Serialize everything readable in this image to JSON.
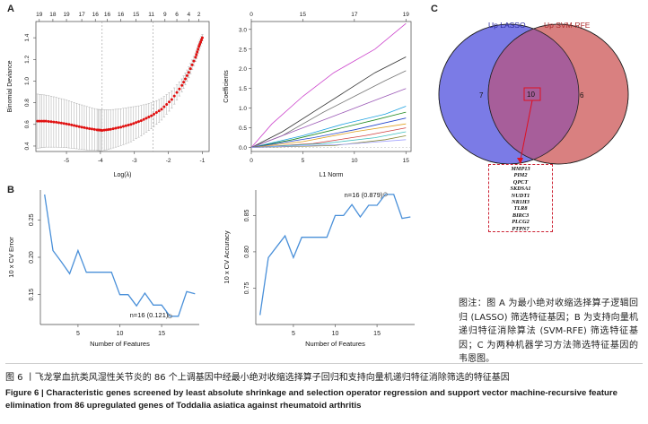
{
  "panels": {
    "A": "A",
    "B": "B",
    "C": "C"
  },
  "chart_data": [
    {
      "type": "line",
      "panel": "A-left",
      "xlabel": "Log(λ)",
      "ylabel": "Binomial Deviance",
      "xlim": [
        -5.9,
        -0.8
      ],
      "ylim": [
        0.35,
        1.55
      ],
      "xticks": [
        -5,
        -4,
        -3,
        -2,
        -1
      ],
      "yticks": [
        0.4,
        0.6,
        0.8,
        1.0,
        1.2,
        1.4
      ],
      "top_ticks": {
        "x": [
          -5.8,
          -5.4,
          -5.0,
          -4.55,
          -4.15,
          -3.8,
          -3.4,
          -2.95,
          -2.5,
          -2.1,
          -1.75,
          -1.4,
          -1.1
        ],
        "labels": [
          "19",
          "18",
          "19",
          "17",
          "16",
          "16",
          "16",
          "15",
          "11",
          "9",
          "6",
          "4",
          "2"
        ]
      },
      "vlines": [
        -3.95,
        -2.45
      ],
      "curve": {
        "x": [
          -5.85,
          -5.6,
          -5.3,
          -5.0,
          -4.7,
          -4.4,
          -4.1,
          -3.95,
          -3.7,
          -3.4,
          -3.1,
          -2.8,
          -2.5,
          -2.2,
          -1.9,
          -1.6,
          -1.4,
          -1.2,
          -1.1,
          -1.0
        ],
        "y": [
          0.63,
          0.63,
          0.62,
          0.605,
          0.585,
          0.565,
          0.55,
          0.545,
          0.555,
          0.575,
          0.6,
          0.635,
          0.68,
          0.74,
          0.83,
          0.96,
          1.08,
          1.22,
          1.32,
          1.4
        ],
        "err": [
          0.25,
          0.24,
          0.23,
          0.22,
          0.21,
          0.2,
          0.19,
          0.19,
          0.18,
          0.17,
          0.16,
          0.14,
          0.12,
          0.1,
          0.08,
          0.06,
          0.05,
          0.04,
          0.04,
          0.03
        ]
      },
      "colors": {
        "point": "#e01010",
        "errbar": "#aaaaaa",
        "vline": "#999999"
      }
    },
    {
      "type": "line",
      "panel": "A-right",
      "xlabel": "L1 Norm",
      "ylabel": "Coefficients",
      "xlim": [
        0,
        15.5
      ],
      "ylim": [
        -0.1,
        3.2
      ],
      "xticks": [
        0,
        5,
        10,
        15
      ],
      "yticks": [
        0.0,
        0.5,
        1.0,
        1.5,
        2.0,
        2.5,
        3.0
      ],
      "top_ticks": {
        "x": [
          0,
          5,
          10,
          15
        ],
        "labels": [
          "0",
          "15",
          "17",
          "19"
        ]
      },
      "series": [
        {
          "color": "#cc44cc",
          "x": [
            0,
            2,
            5,
            8,
            12,
            15
          ],
          "y": [
            0,
            0.6,
            1.3,
            1.9,
            2.5,
            3.15
          ]
        },
        {
          "color": "#333333",
          "x": [
            0,
            3,
            6,
            9,
            12,
            15
          ],
          "y": [
            0,
            0.4,
            0.9,
            1.4,
            1.9,
            2.3
          ]
        },
        {
          "color": "#777777",
          "x": [
            0,
            3,
            7,
            10,
            13,
            15
          ],
          "y": [
            0,
            0.3,
            0.9,
            1.3,
            1.7,
            1.95
          ]
        },
        {
          "color": "#9b59b6",
          "x": [
            0,
            4,
            8,
            12,
            15
          ],
          "y": [
            0,
            0.4,
            0.8,
            1.2,
            1.5
          ]
        },
        {
          "color": "#1aa0e0",
          "x": [
            0,
            5,
            9,
            13,
            15
          ],
          "y": [
            0,
            0.3,
            0.6,
            0.85,
            1.05
          ]
        },
        {
          "color": "#228b22",
          "x": [
            0,
            4,
            8,
            12,
            15
          ],
          "y": [
            0,
            0.2,
            0.45,
            0.7,
            0.9
          ]
        },
        {
          "color": "#2244cc",
          "x": [
            0,
            6,
            10,
            15
          ],
          "y": [
            0,
            0.25,
            0.45,
            0.75
          ]
        },
        {
          "color": "#e0a020",
          "x": [
            0,
            5,
            10,
            15
          ],
          "y": [
            0,
            0.15,
            0.4,
            0.6
          ]
        },
        {
          "color": "#d04040",
          "x": [
            0,
            6,
            11,
            15
          ],
          "y": [
            0,
            0.1,
            0.3,
            0.5
          ]
        },
        {
          "color": "#40c0c0",
          "x": [
            0,
            7,
            12,
            15
          ],
          "y": [
            0,
            0.1,
            0.25,
            0.4
          ]
        },
        {
          "color": "#888833",
          "x": [
            0,
            8,
            13,
            15
          ],
          "y": [
            0,
            0.05,
            0.2,
            0.3
          ]
        },
        {
          "color": "#a0a0ff",
          "x": [
            0,
            9,
            15
          ],
          "y": [
            0,
            0.08,
            0.2
          ]
        }
      ]
    },
    {
      "type": "line",
      "panel": "B-left",
      "xlabel": "Number of Features",
      "ylabel": "10 x CV Error",
      "xlim": [
        0.5,
        19.5
      ],
      "ylim": [
        0.11,
        0.29
      ],
      "xticks": [
        5,
        10,
        15
      ],
      "yticks": [
        0.15,
        0.2,
        0.25
      ],
      "x": [
        1,
        2,
        3,
        4,
        5,
        6,
        7,
        8,
        9,
        10,
        11,
        12,
        13,
        14,
        15,
        16,
        17,
        18,
        19
      ],
      "values": [
        0.284,
        0.209,
        0.194,
        0.178,
        0.209,
        0.18,
        0.18,
        0.18,
        0.18,
        0.15,
        0.15,
        0.135,
        0.152,
        0.136,
        0.136,
        0.121,
        0.121,
        0.154,
        0.151
      ],
      "annotation": {
        "text": "n=16 (0.121)",
        "x": 16,
        "y": 0.121
      },
      "color": "#4a90d9"
    },
    {
      "type": "line",
      "panel": "B-right",
      "xlabel": "Number of Features",
      "ylabel": "10 x CV Accuracy",
      "xlim": [
        0.5,
        19.5
      ],
      "ylim": [
        0.7,
        0.885
      ],
      "xticks": [
        5,
        10,
        15
      ],
      "yticks": [
        0.75,
        0.8,
        0.85
      ],
      "x": [
        1,
        2,
        3,
        4,
        5,
        6,
        7,
        8,
        9,
        10,
        11,
        12,
        13,
        14,
        15,
        16,
        17,
        18,
        19
      ],
      "values": [
        0.713,
        0.792,
        0.807,
        0.822,
        0.792,
        0.82,
        0.82,
        0.82,
        0.82,
        0.85,
        0.85,
        0.865,
        0.848,
        0.864,
        0.864,
        0.879,
        0.879,
        0.846,
        0.848
      ],
      "annotation": {
        "text": "n=16 (0.879)",
        "x": 16,
        "y": 0.879
      },
      "color": "#4a90d9"
    }
  ],
  "venn": {
    "left_label": "Up LASSO",
    "right_label": "Up SVM-RFE",
    "left_only": "7",
    "intersection": "10",
    "right_only": "6",
    "left_color": "#7b7be6",
    "right_color": "#d98080",
    "overlap_color": "#a75e9a",
    "genes": [
      "MMP13",
      "PIM2",
      "QPCT",
      "SKDSA1",
      "NUDT1",
      "NR1H3",
      "TLR8",
      "BIRC3",
      "PLCG2",
      "PTPN7"
    ]
  },
  "note": "图注：图 A 为最小绝对收缩选择算子逻辑回归 (LASSO) 筛选特征基因；B 为支持向量机递归特征消除算法 (SVM-RFE) 筛选特征基因；C 为两种机器学习方法筛选特征基因的韦恩图。",
  "caption": {
    "zh": "图 6 丨飞龙掌血抗类风湿性关节炎的 86 个上调基因中经最小绝对收缩选择算子回归和支持向量机递归特征消除筛选的特征基因",
    "en": "Figure 6  |  Characteristic genes screened by least absolute shrinkage and selection operator regression and support vector machine-recursive feature elimination from 86 upregulated genes of Toddalia asiatica against rheumatoid arthritis"
  }
}
